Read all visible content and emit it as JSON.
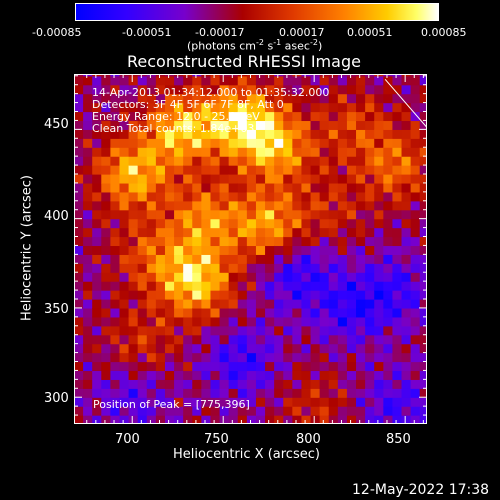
{
  "chart_data": {
    "type": "heatmap",
    "title": "Reconstructed RHESSI Image",
    "xlabel": "Heliocentric X (arcsec)",
    "ylabel": "Heliocentric Y (arcsec)",
    "xlim": [
      668,
      862
    ],
    "ylim": [
      285,
      481
    ],
    "x_ticks": [
      "700",
      "750",
      "800",
      "850"
    ],
    "y_ticks": [
      "300",
      "350",
      "400",
      "450"
    ],
    "colorbar": {
      "range": [
        -0.00085,
        0.00085
      ],
      "tick_labels": [
        "-0.00085",
        "-0.00051",
        "-0.00017",
        "0.00017",
        "0.00051",
        "0.00085"
      ],
      "units_prefix": "(photons cm",
      "units_sup1": "-2",
      "units_mid1": " s",
      "units_sup2": "-1",
      "units_mid2": " asec",
      "units_sup3": "-2",
      "units_suffix": ")"
    },
    "annotations": {
      "time_range": "14-Apr-2013 01:34:12.000 to 01:35:32.000",
      "detectors": "Detectors: 3F 4F 5F 6F 7F 8F, Att 0",
      "energy": "Energy Range: 12.0 - 25.0 keV",
      "clean": "Clean    Total counts: 1.84e+03",
      "peak": "Position of Peak = [775,396]"
    },
    "peak_position": [
      775,
      396
    ],
    "intensity_sources": [
      {
        "x": 760,
        "y": 455,
        "amp": 0.00085
      },
      {
        "x": 727,
        "y": 450,
        "amp": 0.0008
      },
      {
        "x": 780,
        "y": 440,
        "amp": 0.0007
      },
      {
        "x": 700,
        "y": 425,
        "amp": 0.00075
      },
      {
        "x": 740,
        "y": 400,
        "amp": 0.0006
      },
      {
        "x": 775,
        "y": 396,
        "amp": 0.0007
      },
      {
        "x": 735,
        "y": 365,
        "amp": 0.00085
      },
      {
        "x": 710,
        "y": 380,
        "amp": 0.0004
      },
      {
        "x": 845,
        "y": 430,
        "amp": 0.0005
      },
      {
        "x": 822,
        "y": 452,
        "amp": 0.00035
      },
      {
        "x": 810,
        "y": 405,
        "amp": 0.00025
      },
      {
        "x": 705,
        "y": 330,
        "amp": 0.0003
      },
      {
        "x": 800,
        "y": 295,
        "amp": 0.00025
      },
      {
        "x": 790,
        "y": 370,
        "amp": -0.00045
      },
      {
        "x": 820,
        "y": 350,
        "amp": -0.0004
      },
      {
        "x": 845,
        "y": 360,
        "amp": -0.00035
      },
      {
        "x": 760,
        "y": 320,
        "amp": -0.0004
      },
      {
        "x": 700,
        "y": 300,
        "amp": -0.0003
      },
      {
        "x": 845,
        "y": 295,
        "amp": -0.00035
      }
    ],
    "limb_line": {
      "x": [
        839,
        862
      ],
      "y": [
        478,
        451
      ]
    }
  },
  "footer": {
    "timestamp": "12-May-2022 17:38"
  }
}
